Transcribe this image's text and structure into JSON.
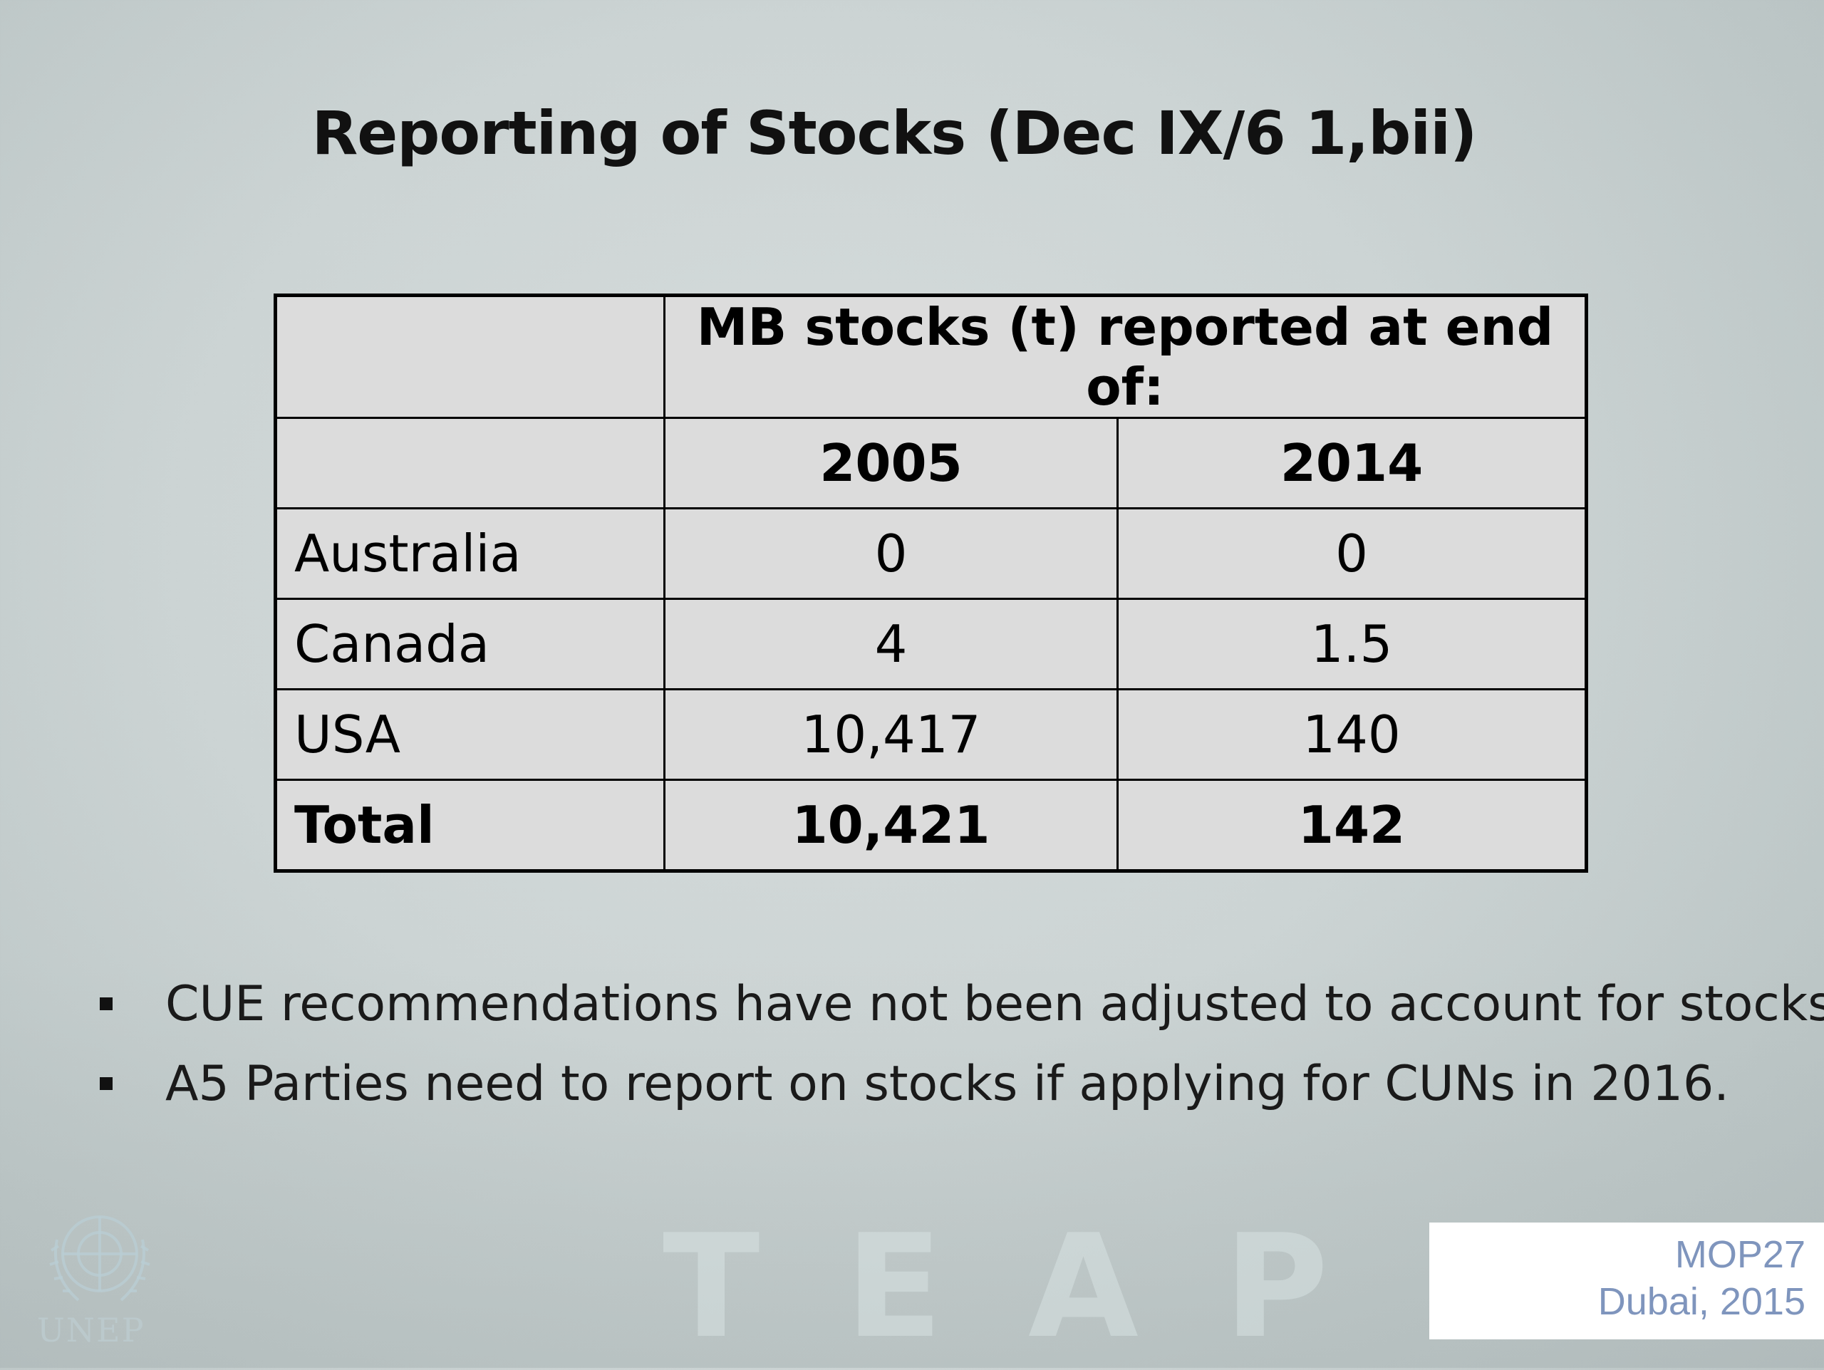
{
  "slide": {
    "title": "Reporting of Stocks (Dec IX/6 1,bii)"
  },
  "table": {
    "group_header": "MB stocks (t) reported at end of:",
    "years": [
      "2005",
      "2014"
    ],
    "rows": [
      {
        "country": "Australia",
        "v2005": "0",
        "v2014": "0"
      },
      {
        "country": "Canada",
        "v2005": "4",
        "v2014": "1.5"
      },
      {
        "country": "USA",
        "v2005": "10,417",
        "v2014": "140"
      }
    ],
    "total": {
      "label": "Total",
      "v2005": "10,421",
      "v2014": "142"
    }
  },
  "bullets": [
    "CUE recommendations have not been adjusted to account for stocks",
    "A5 Parties need to report on stocks if applying for CUNs in 2016."
  ],
  "watermark": {
    "text": "TEAP",
    "logo_text": "UNEP",
    "logo_icon": "un-laurel-globe-icon"
  },
  "footer": {
    "line1": "MOP27",
    "line2": "Dubai, 2015",
    "color": "#7f95bd"
  }
}
